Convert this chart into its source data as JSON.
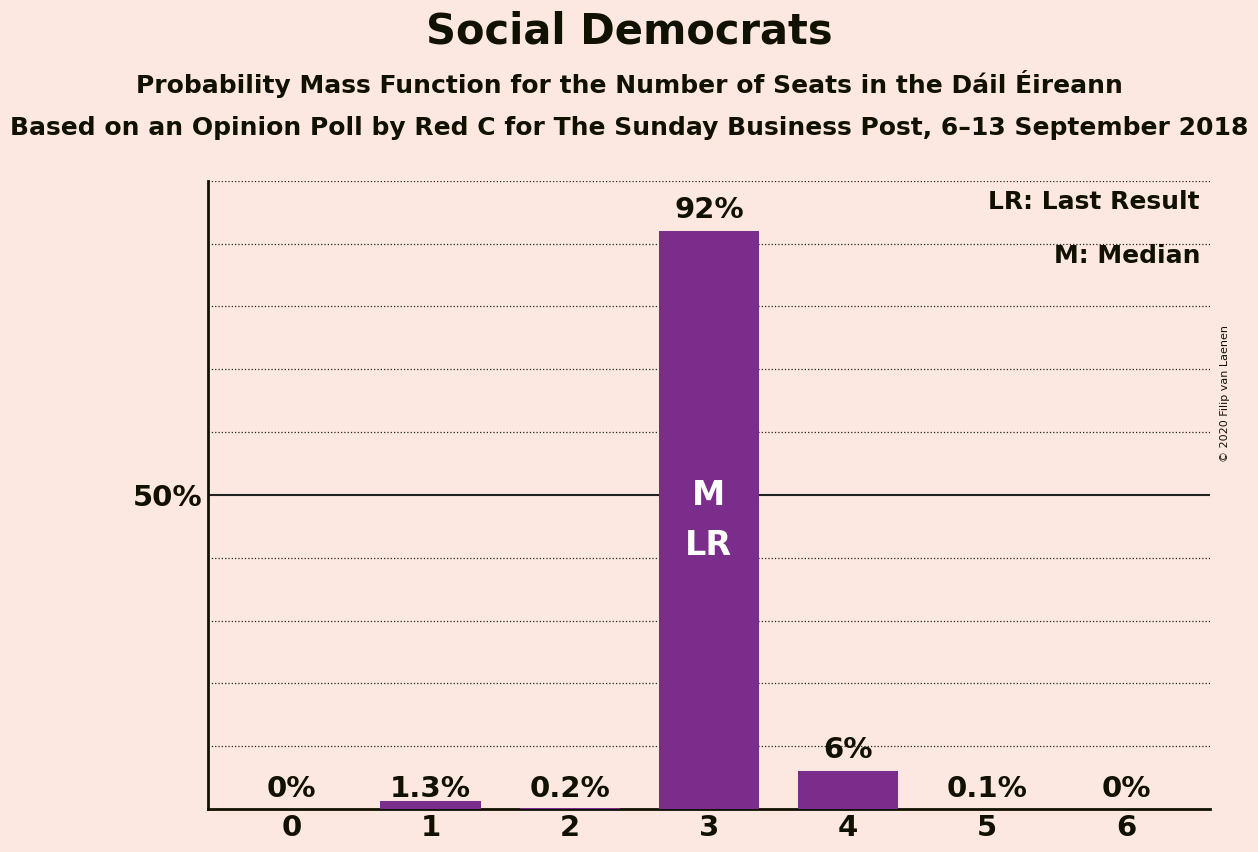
{
  "title": "Social Democrats",
  "subtitle1": "Probability Mass Function for the Number of Seats in the Dáil Éireann",
  "subtitle2": "Based on an Opinion Poll by Red C for The Sunday Business Post, 6–13 September 2018",
  "copyright": "© 2020 Filip van Laenen",
  "categories": [
    0,
    1,
    2,
    3,
    4,
    5,
    6
  ],
  "values": [
    0.0,
    1.3,
    0.2,
    92.0,
    6.0,
    0.1,
    0.0
  ],
  "bar_color": "#7b2d8b",
  "background_color": "#fce8e0",
  "text_color": "#111100",
  "bar_labels": [
    "0%",
    "1.3%",
    "0.2%",
    "92%",
    "6%",
    "0.1%",
    "0%"
  ],
  "label_above_threshold": 5.0,
  "median_seat_idx": 3,
  "last_result_seat_idx": 3,
  "median_label": "M",
  "last_result_label": "LR",
  "legend_lr": "LR: Last Result",
  "legend_m": "M: Median",
  "ytick_label": "50%",
  "ytick_value": 50.0,
  "solid_line_at": 50.0,
  "ylim": [
    0,
    100
  ],
  "grid_color": "#222222",
  "grid_levels": [
    10,
    20,
    30,
    40,
    60,
    70,
    80,
    90,
    100
  ],
  "title_fontsize": 30,
  "subtitle1_fontsize": 18,
  "subtitle2_fontsize": 18,
  "bar_label_fontsize": 21,
  "axis_tick_fontsize": 21,
  "legend_fontsize": 18,
  "inner_label_fontsize": 24,
  "bar_width": 0.72
}
